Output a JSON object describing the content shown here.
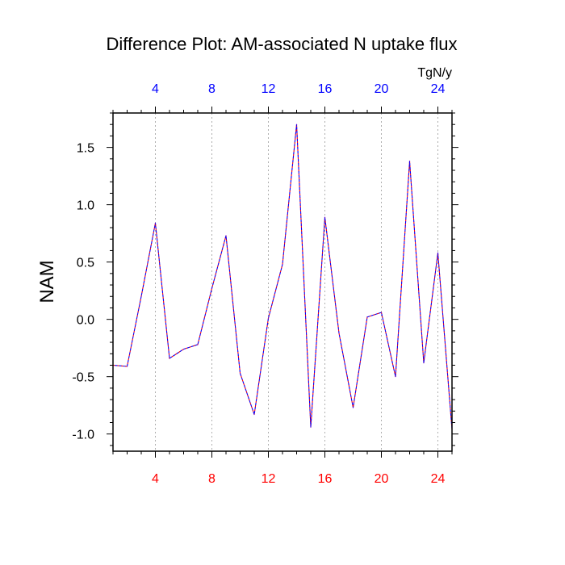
{
  "chart_data": {
    "type": "line",
    "title": "Difference Plot: AM-associated N uptake flux",
    "units_label": "TgN/y",
    "ylabel": "NAM",
    "xlabel": "",
    "xlim": [
      1,
      25
    ],
    "ylim": [
      -1.15,
      1.8
    ],
    "x_ticks": [
      4,
      8,
      12,
      16,
      20,
      24
    ],
    "y_ticks": [
      -1.0,
      -0.5,
      0.0,
      0.5,
      1.0,
      1.5
    ],
    "y_tick_labels": [
      "-1.0",
      "-0.5",
      "0.0",
      "0.5",
      "1.0",
      "1.5"
    ],
    "grid": "vertical dotted at major x ticks",
    "series": [
      {
        "x": [
          1,
          2,
          3,
          4,
          5,
          6,
          7,
          8,
          9,
          10,
          11,
          12,
          13,
          14,
          15,
          16,
          17,
          18,
          19,
          20,
          21,
          22,
          23,
          24,
          25
        ],
        "values": [
          -0.4,
          -0.41,
          0.2,
          0.84,
          -0.34,
          -0.26,
          -0.22,
          0.27,
          0.73,
          -0.47,
          -0.83,
          0.01,
          0.48,
          1.7,
          -0.94,
          0.89,
          -0.12,
          -0.77,
          0.02,
          0.06,
          -0.5,
          1.38,
          -0.38,
          0.58,
          -0.96
        ],
        "color": "#ff0000",
        "overlay_color": "#0000ff",
        "line_style": "dashed"
      }
    ]
  },
  "colors": {
    "top_axis": "#0000ff",
    "bottom_axis": "#ff0000",
    "line": "#6600cc"
  }
}
